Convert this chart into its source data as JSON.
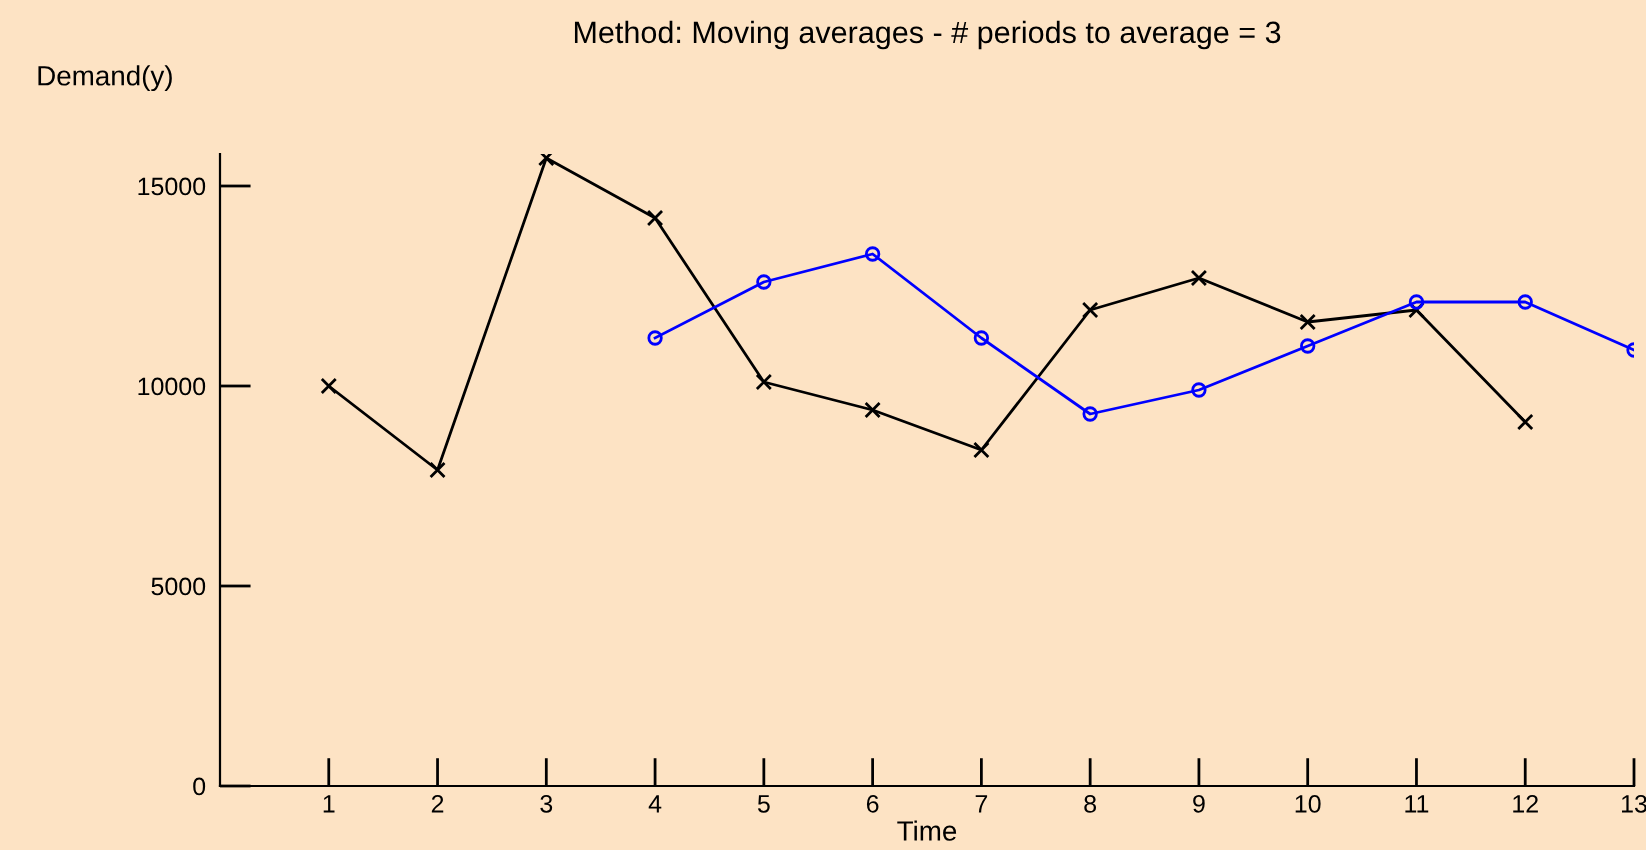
{
  "chart_data": {
    "type": "line",
    "title": "Method: Moving averages - # periods to average = 3",
    "xlabel": "Time",
    "ylabel": "Demand(y)",
    "xlim": [
      0,
      13
    ],
    "xticks": [
      1,
      2,
      3,
      4,
      5,
      6,
      7,
      8,
      9,
      10,
      11,
      12,
      13
    ],
    "ylim": [
      0,
      15800
    ],
    "yticks": [
      0,
      5000,
      10000,
      15000
    ],
    "grid": false,
    "legend": false,
    "series": [
      {
        "color": "#000000",
        "marker": "cross",
        "x": [
          1,
          2,
          3,
          4,
          5,
          6,
          7,
          8,
          9,
          10,
          11,
          12
        ],
        "values": [
          10000,
          7900,
          15700,
          14200,
          10100,
          9400,
          8400,
          11900,
          12700,
          11600,
          11900,
          9100
        ]
      },
      {
        "color": "#0000ff",
        "marker": "circle",
        "x": [
          4,
          5,
          6,
          7,
          8,
          9,
          10,
          11,
          12,
          13
        ],
        "values": [
          11200,
          12600,
          13300,
          11200,
          9300,
          9900,
          11000,
          12100,
          12100,
          10900
        ]
      }
    ]
  }
}
